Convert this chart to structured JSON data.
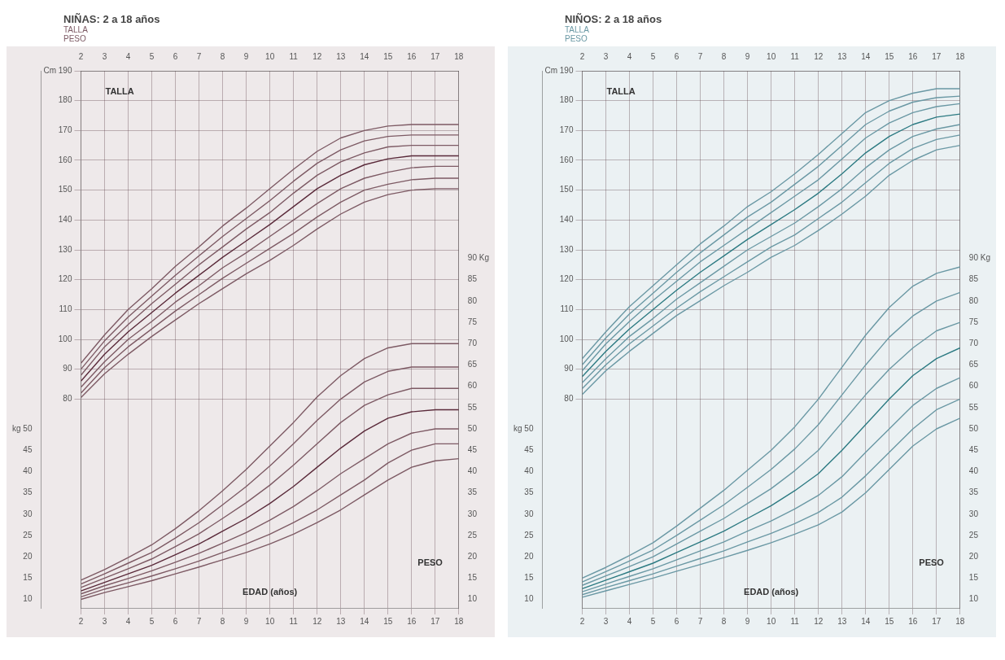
{
  "chart_data": [
    {
      "type": "line",
      "title": "NIÑAS: 2 a 18 años",
      "annotations": [
        "TALLA",
        "PESO"
      ],
      "xlabel": "EDAD (años)",
      "ylabel": "TALLA",
      "y2label": "PESO",
      "x": [
        2,
        3,
        4,
        5,
        6,
        7,
        8,
        9,
        10,
        11,
        12,
        13,
        14,
        15,
        16,
        17,
        18
      ],
      "xlim": [
        2,
        18
      ],
      "xticks": [
        2,
        3,
        4,
        5,
        6,
        7,
        8,
        9,
        10,
        11,
        12,
        13,
        14,
        15,
        16,
        17,
        18
      ],
      "x2lim": [
        2,
        18
      ],
      "x2ticks": [
        2,
        3,
        4,
        5,
        6,
        7,
        8,
        9,
        10,
        11,
        12,
        13,
        14,
        15,
        16,
        17,
        18
      ],
      "ylim": [
        10,
        190
      ],
      "yticks": [
        80,
        90,
        100,
        110,
        120,
        130,
        140,
        150,
        160,
        170,
        180,
        {
          "value": 190,
          "label": "Cm 190"
        }
      ],
      "y2lim": [
        8,
        134
      ],
      "y2ticks": [
        10,
        15,
        20,
        25,
        30,
        35,
        40,
        45,
        50,
        55,
        60,
        65,
        70,
        75,
        80,
        85,
        {
          "value": 90,
          "label": "90 Kg"
        }
      ],
      "y3lim": [
        8,
        134
      ],
      "y3ticks": [
        10,
        15,
        20,
        25,
        30,
        35,
        40,
        45,
        {
          "value": 50,
          "label": "kg 50"
        }
      ],
      "grid": true,
      "legend": false,
      "marker": "none",
      "series": [
        {
          "color": "#7d5a64",
          "values": [
            80.5,
            88.5,
            95,
            101,
            106.5,
            112,
            117,
            122,
            126.5,
            131.5,
            137,
            142,
            146,
            148.5,
            150,
            150.5,
            150.5
          ]
        },
        {
          "color": "#7d5a64",
          "values": [
            82,
            90.5,
            97.5,
            103.5,
            109.5,
            115,
            120.5,
            125.5,
            130.5,
            135.5,
            141,
            146,
            150,
            152,
            153.5,
            154,
            154
          ]
        },
        {
          "color": "#7d5a64",
          "values": [
            84,
            92.5,
            100,
            106,
            112.5,
            118,
            124,
            129,
            134.5,
            140,
            145.5,
            150.5,
            154,
            156,
            157.5,
            158,
            158
          ]
        },
        {
          "color": "#5a2a3a",
          "values": [
            86,
            95,
            102.5,
            109,
            115.5,
            121.5,
            127.5,
            133,
            138.5,
            144.5,
            150.5,
            155,
            158.5,
            160.5,
            161.5,
            161.5,
            161.5
          ]
        },
        {
          "color": "#7d5a64",
          "values": [
            88,
            97.5,
            105,
            112,
            118.5,
            125,
            131,
            137,
            142.5,
            149,
            155,
            159.5,
            162.5,
            164.5,
            165,
            165,
            165
          ]
        },
        {
          "color": "#7d5a64",
          "values": [
            90,
            99.5,
            107.5,
            114.5,
            121.5,
            128,
            134.5,
            140.5,
            146.5,
            153,
            159,
            163.5,
            166.5,
            168,
            168.5,
            168.5,
            168.5
          ]
        },
        {
          "color": "#7d5a64",
          "values": [
            92,
            101.5,
            110,
            117,
            124.5,
            131,
            138,
            144,
            150.5,
            157,
            163,
            167.5,
            170,
            171.5,
            172,
            172,
            172
          ]
        },
        {
          "color": "#7d5a64",
          "axis": "y2",
          "values": [
            10,
            11.6,
            13,
            14.4,
            16,
            17.6,
            19.3,
            21,
            23,
            25.3,
            28,
            31,
            34.5,
            38,
            41,
            42.5,
            43
          ]
        },
        {
          "color": "#7d5a64",
          "axis": "y2",
          "values": [
            10.6,
            12.4,
            13.9,
            15.5,
            17.2,
            19,
            21,
            23,
            25.3,
            28,
            31,
            34.5,
            38,
            42,
            45,
            46.5,
            46.5
          ]
        },
        {
          "color": "#7d5a64",
          "axis": "y2",
          "values": [
            11.3,
            13.2,
            14.9,
            16.7,
            18.7,
            20.8,
            23.2,
            25.7,
            28.6,
            31.8,
            35.5,
            39.5,
            43,
            46.5,
            49,
            50,
            50
          ]
        },
        {
          "color": "#5a2a3a",
          "axis": "y2",
          "values": [
            12,
            14,
            16,
            18,
            20.5,
            23,
            26,
            29,
            32.5,
            36.5,
            41,
            45.5,
            49.5,
            52.5,
            54,
            54.5,
            54.5
          ]
        },
        {
          "color": "#7d5a64",
          "axis": "y2",
          "values": [
            12.8,
            15,
            17.2,
            19.5,
            22.4,
            25.4,
            29,
            32.7,
            36.8,
            41.5,
            46.5,
            51.5,
            55.5,
            58,
            59.5,
            59.5,
            59.5
          ]
        },
        {
          "color": "#7d5a64",
          "axis": "y2",
          "values": [
            13.6,
            16,
            18.5,
            21,
            24.4,
            28,
            32.2,
            36.5,
            41.3,
            46.5,
            52,
            57,
            61,
            63.5,
            64.5,
            64.5,
            64.5
          ]
        },
        {
          "color": "#7d5a64",
          "axis": "y2",
          "values": [
            14.5,
            17,
            19.8,
            22.8,
            26.6,
            30.8,
            35.5,
            40.5,
            46,
            51.5,
            57.5,
            62.5,
            66.5,
            69,
            70,
            70,
            70
          ]
        }
      ]
    },
    {
      "type": "line",
      "title": "NIÑOS: 2 a 18 años",
      "annotations": [
        "TALLA",
        "PESO"
      ],
      "xlabel": "EDAD (años)",
      "ylabel": "TALLA",
      "y2label": "PESO",
      "x": [
        2,
        3,
        4,
        5,
        6,
        7,
        8,
        9,
        10,
        11,
        12,
        13,
        14,
        15,
        16,
        17,
        18
      ],
      "xlim": [
        2,
        18
      ],
      "xticks": [
        2,
        3,
        4,
        5,
        6,
        7,
        8,
        9,
        10,
        11,
        12,
        13,
        14,
        15,
        16,
        17,
        18
      ],
      "x2lim": [
        2,
        18
      ],
      "x2ticks": [
        2,
        3,
        4,
        5,
        6,
        7,
        8,
        9,
        10,
        11,
        12,
        13,
        14,
        15,
        16,
        17,
        18
      ],
      "ylim": [
        10,
        190
      ],
      "yticks": [
        80,
        90,
        100,
        110,
        120,
        130,
        140,
        150,
        160,
        170,
        180,
        {
          "value": 190,
          "label": "Cm 190"
        }
      ],
      "y2lim": [
        8,
        134
      ],
      "y2ticks": [
        10,
        15,
        20,
        25,
        30,
        35,
        40,
        45,
        50,
        55,
        60,
        65,
        70,
        75,
        80,
        85,
        {
          "value": 90,
          "label": "90 Kg"
        }
      ],
      "y3lim": [
        8,
        134
      ],
      "y3ticks": [
        10,
        15,
        20,
        25,
        30,
        35,
        40,
        45,
        {
          "value": 50,
          "label": "kg 50"
        }
      ],
      "grid": true,
      "legend": false,
      "marker": "none",
      "series": [
        {
          "color": "#6a98a4",
          "values": [
            81.5,
            89.5,
            96,
            102,
            108,
            113,
            118,
            122.5,
            127.5,
            131.5,
            136.5,
            142,
            148,
            155,
            160,
            163.5,
            165
          ]
        },
        {
          "color": "#6a98a4",
          "values": [
            83.5,
            91.5,
            98.5,
            104.5,
            110.5,
            116,
            121,
            126,
            131,
            135,
            140.5,
            146,
            152.5,
            159,
            164,
            167,
            168.5
          ]
        },
        {
          "color": "#6a98a4",
          "values": [
            85.5,
            93.5,
            101,
            107,
            113.5,
            119,
            124.5,
            130,
            134.5,
            139,
            144.5,
            150.5,
            157.5,
            163.5,
            168,
            170.5,
            172
          ]
        },
        {
          "color": "#2c7a82",
          "values": [
            87.5,
            96,
            103.5,
            110,
            116.5,
            122.5,
            128,
            133.5,
            138.5,
            143.5,
            149,
            155.5,
            162.5,
            168,
            172,
            174.5,
            175.5
          ]
        },
        {
          "color": "#6a98a4",
          "values": [
            89.5,
            98.5,
            106,
            113,
            119.5,
            126,
            131.5,
            137,
            142.5,
            148,
            153.5,
            160.5,
            167.5,
            172.5,
            176,
            178,
            179
          ]
        },
        {
          "color": "#6a98a4",
          "values": [
            91.5,
            100.5,
            108.5,
            115.5,
            122.5,
            129,
            135,
            141,
            146,
            152,
            158,
            165,
            172,
            176.5,
            179.5,
            181,
            181.5
          ]
        },
        {
          "color": "#6a98a4",
          "values": [
            93.5,
            102.5,
            111,
            118,
            125,
            132,
            138,
            144.5,
            149.5,
            155.5,
            162,
            169,
            176,
            180,
            182.5,
            184,
            184
          ]
        },
        {
          "color": "#6a98a4",
          "axis": "y2",
          "values": [
            10.5,
            12,
            13.5,
            15,
            16.6,
            18.2,
            19.8,
            21.5,
            23.3,
            25.3,
            27.5,
            30.5,
            35,
            40.5,
            46,
            50,
            52.5
          ]
        },
        {
          "color": "#6a98a4",
          "axis": "y2",
          "values": [
            11.1,
            12.8,
            14.4,
            16,
            17.8,
            19.6,
            21.4,
            23.5,
            25.5,
            27.8,
            30.4,
            34,
            39,
            44.5,
            50,
            54.5,
            57
          ]
        },
        {
          "color": "#6a98a4",
          "axis": "y2",
          "values": [
            11.8,
            13.6,
            15.4,
            17.2,
            19.3,
            21.4,
            23.5,
            26,
            28.4,
            31.2,
            34.4,
            38.8,
            44.5,
            50,
            55.5,
            59.5,
            62
          ]
        },
        {
          "color": "#2c7a82",
          "axis": "y2",
          "values": [
            12.5,
            14.5,
            16.5,
            18.5,
            21,
            23.5,
            26,
            29,
            32,
            35.5,
            39.5,
            45,
            51,
            57,
            62.5,
            66.5,
            69
          ]
        },
        {
          "color": "#6a98a4",
          "axis": "y2",
          "values": [
            13.3,
            15.5,
            17.7,
            20,
            23,
            26,
            29,
            32.5,
            36,
            40.2,
            45,
            51.5,
            58,
            64,
            69,
            73,
            75
          ]
        },
        {
          "color": "#6a98a4",
          "axis": "y2",
          "values": [
            14.1,
            16.5,
            19,
            21.6,
            25,
            28.6,
            32.2,
            36.3,
            40.5,
            45.3,
            51,
            58,
            65,
            71.5,
            76.5,
            80,
            82
          ]
        },
        {
          "color": "#6a98a4",
          "axis": "y2",
          "values": [
            15,
            17.5,
            20.3,
            23.3,
            27.2,
            31.4,
            35.6,
            40.3,
            45,
            50.5,
            57,
            64.5,
            72,
            78.5,
            83.5,
            86.5,
            88
          ]
        }
      ]
    }
  ]
}
